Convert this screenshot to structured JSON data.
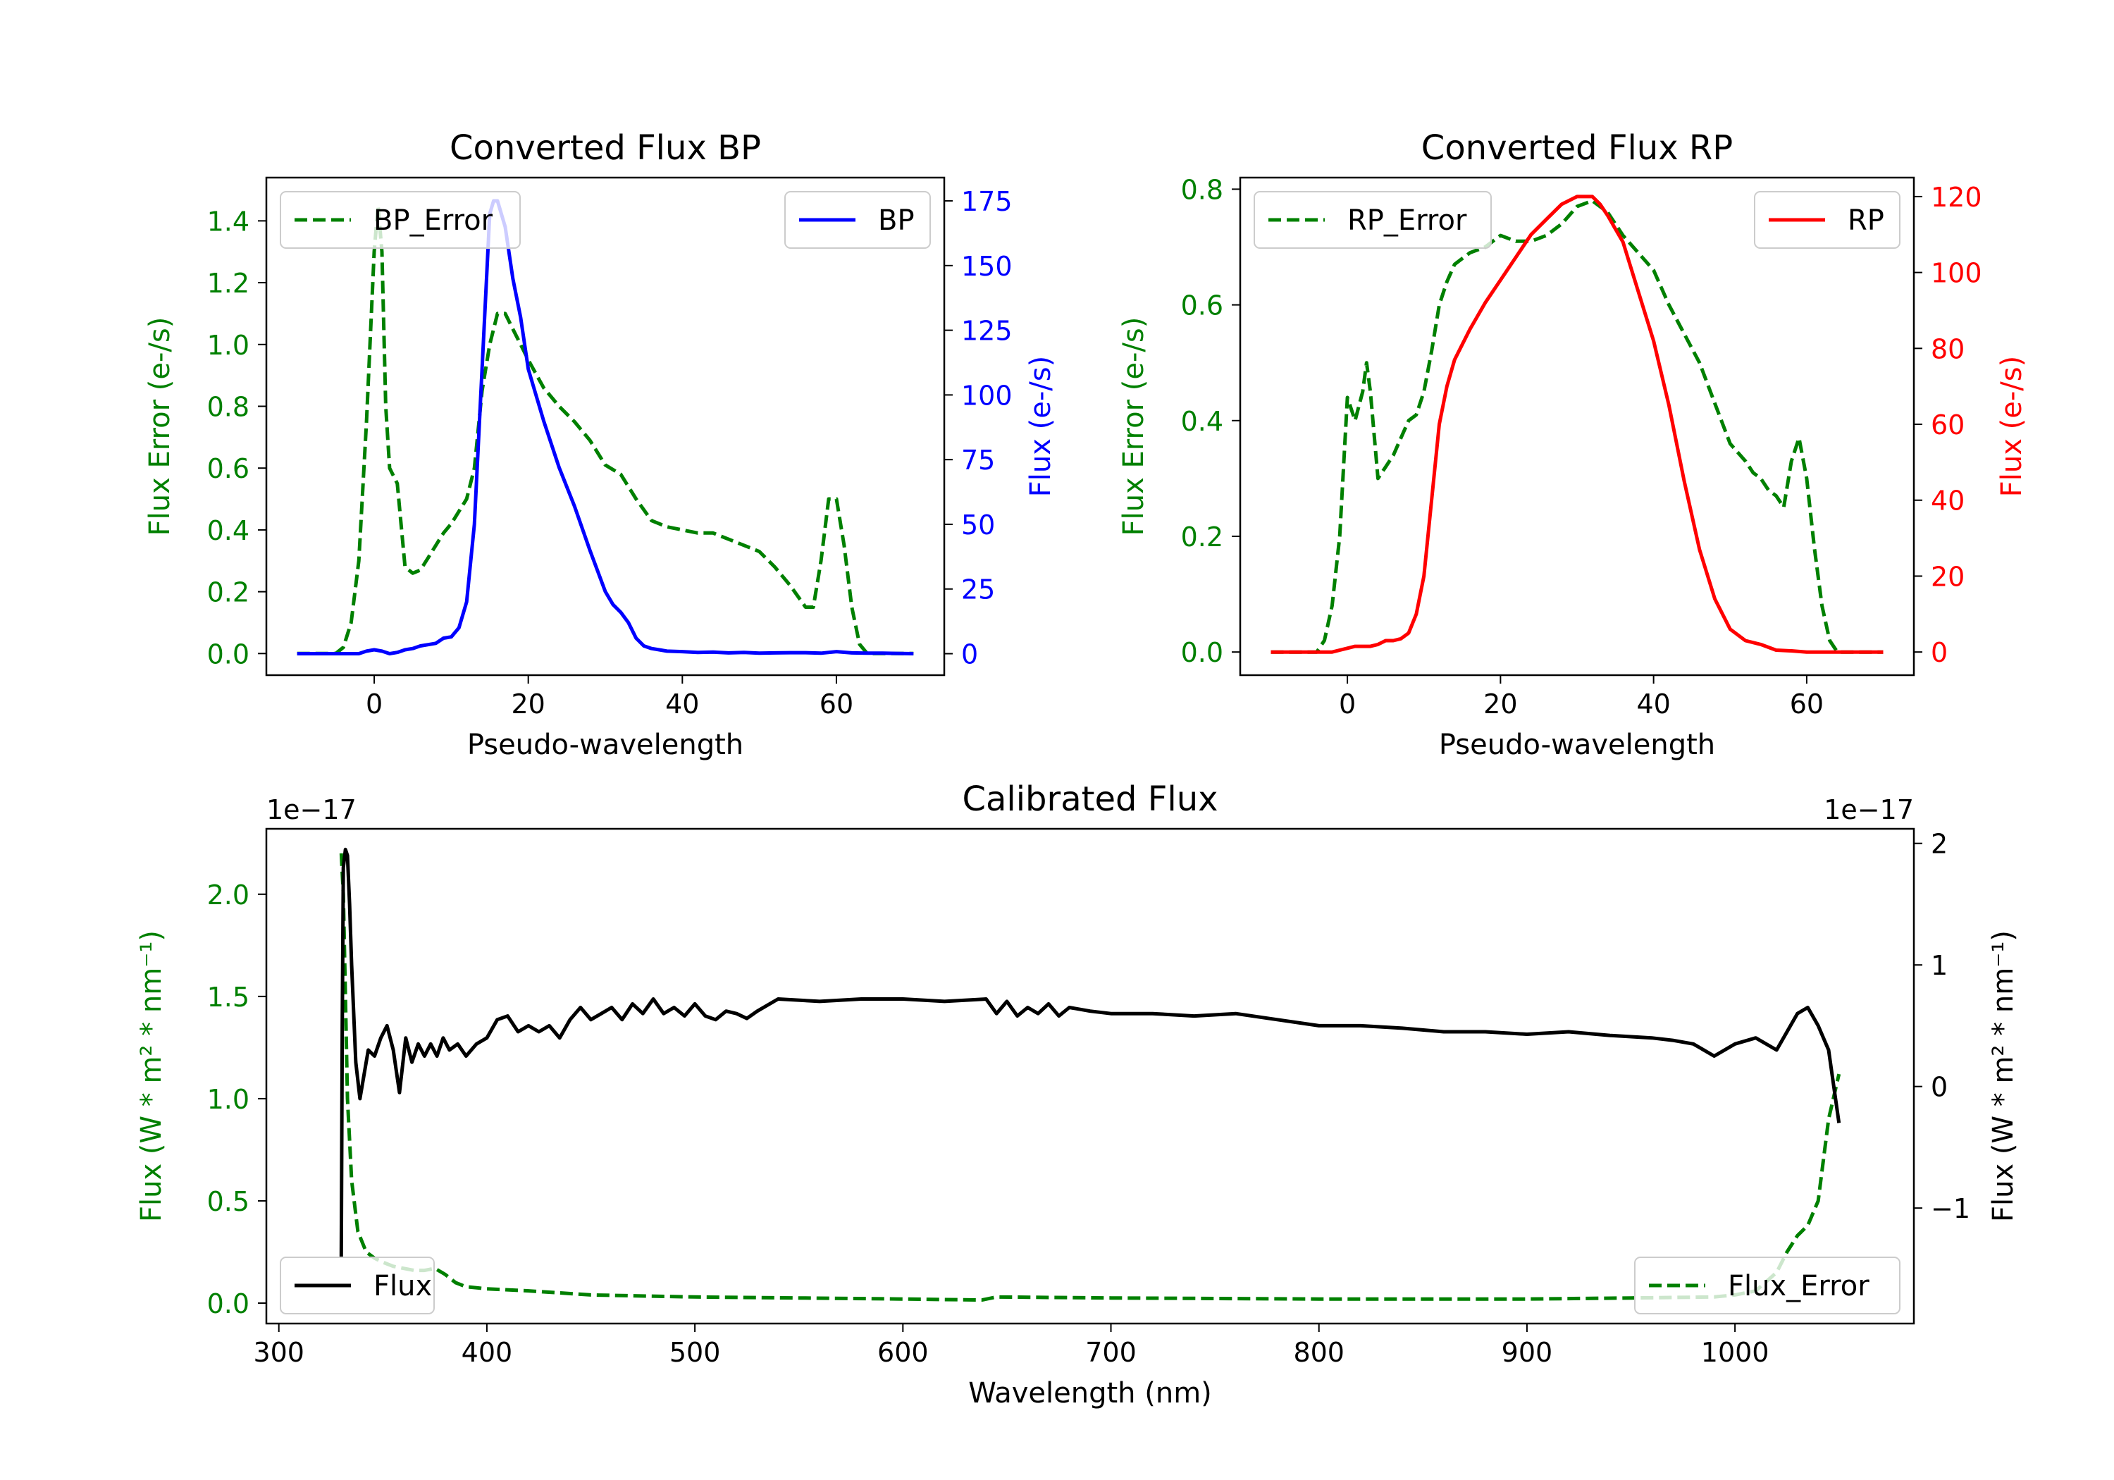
{
  "colors": {
    "error": "#008000",
    "bp": "#0000ff",
    "rp": "#ff0000",
    "flux": "#000000",
    "axis": "#000000"
  },
  "chart_data": [
    {
      "id": "bp",
      "type": "line",
      "title": "Converted Flux BP",
      "xlabel": "Pseudo-wavelength",
      "ylabel_left": "Flux Error (e-/s)",
      "ylabel_right": "Flux (e-/s)",
      "xlim": [
        -14,
        74
      ],
      "ylim_left": [
        -0.07,
        1.54
      ],
      "ylim_right": [
        -8.3,
        184
      ],
      "xticks": [
        0,
        20,
        40,
        60
      ],
      "xtick_labels": [
        "0",
        "20",
        "40",
        "60"
      ],
      "yticks_left": [
        0.0,
        0.2,
        0.4,
        0.6,
        0.8,
        1.0,
        1.2,
        1.4
      ],
      "ytick_labels_left": [
        "0.0",
        "0.2",
        "0.4",
        "0.6",
        "0.8",
        "1.0",
        "1.2",
        "1.4"
      ],
      "yticks_right": [
        0,
        25,
        50,
        75,
        100,
        125,
        150,
        175
      ],
      "ytick_labels_right": [
        "0",
        "25",
        "50",
        "75",
        "100",
        "125",
        "150",
        "175"
      ],
      "legend_left": "BP_Error",
      "legend_right": "BP",
      "series": [
        {
          "name": "BP_Error",
          "axis": "left",
          "style": "dashed",
          "color_key": "error",
          "x": [
            -10,
            -5,
            -4,
            -3,
            -2,
            -1,
            0,
            0.5,
            1,
            1.5,
            2,
            3,
            4,
            5,
            6,
            7,
            8,
            9,
            10,
            11,
            12,
            13,
            14,
            15,
            16,
            17,
            18,
            19,
            20,
            22,
            24,
            26,
            28,
            30,
            32,
            34,
            36,
            38,
            40,
            42,
            44,
            46,
            48,
            50,
            52,
            54,
            56,
            57,
            58,
            59,
            60,
            61,
            62,
            63,
            64,
            65,
            70
          ],
          "values": [
            0,
            0,
            0.02,
            0.1,
            0.3,
            0.75,
            1.3,
            1.45,
            1.3,
            0.8,
            0.6,
            0.55,
            0.28,
            0.26,
            0.27,
            0.31,
            0.35,
            0.39,
            0.42,
            0.46,
            0.5,
            0.6,
            0.85,
            1.0,
            1.1,
            1.1,
            1.05,
            1.0,
            0.95,
            0.86,
            0.8,
            0.75,
            0.69,
            0.61,
            0.58,
            0.5,
            0.43,
            0.41,
            0.4,
            0.39,
            0.39,
            0.37,
            0.35,
            0.33,
            0.28,
            0.22,
            0.15,
            0.15,
            0.3,
            0.5,
            0.5,
            0.35,
            0.15,
            0.03,
            0,
            0,
            0
          ]
        },
        {
          "name": "BP",
          "axis": "right",
          "style": "solid",
          "color_key": "bp",
          "x": [
            -10,
            -2,
            -1,
            0,
            1,
            2,
            3,
            4,
            5,
            6,
            7,
            8,
            9,
            10,
            11,
            12,
            13,
            14,
            15,
            15.5,
            16,
            17,
            18,
            19,
            20,
            22,
            24,
            26,
            28,
            30,
            31,
            32,
            33,
            34,
            35,
            36,
            37,
            38,
            40,
            42,
            44,
            46,
            48,
            50,
            52,
            54,
            56,
            58,
            60,
            62,
            64,
            66,
            70
          ],
          "values": [
            0,
            0,
            1,
            1.5,
            1,
            0,
            0.5,
            1.5,
            2,
            3,
            3.5,
            4,
            6,
            6.5,
            10,
            20,
            50,
            110,
            170,
            175,
            175,
            165,
            145,
            130,
            110,
            90,
            72,
            57,
            40,
            24,
            19,
            16,
            12,
            6,
            3,
            2,
            1.5,
            1,
            0.8,
            0.5,
            0.6,
            0.3,
            0.5,
            0.2,
            0.3,
            0.4,
            0.4,
            0.2,
            0.8,
            0.3,
            0.2,
            0.2,
            0
          ]
        }
      ]
    },
    {
      "id": "rp",
      "type": "line",
      "title": "Converted Flux RP",
      "xlabel": "Pseudo-wavelength",
      "ylabel_left": "Flux Error (e-/s)",
      "ylabel_right": "Flux (e-/s)",
      "xlim": [
        -14,
        74
      ],
      "ylim_left": [
        -0.04,
        0.82
      ],
      "ylim_right": [
        -6.1,
        125
      ],
      "xticks": [
        0,
        20,
        40,
        60
      ],
      "xtick_labels": [
        "0",
        "20",
        "40",
        "60"
      ],
      "yticks_left": [
        0.0,
        0.2,
        0.4,
        0.6,
        0.8
      ],
      "ytick_labels_left": [
        "0.0",
        "0.2",
        "0.4",
        "0.6",
        "0.8"
      ],
      "yticks_right": [
        0,
        20,
        40,
        60,
        80,
        100,
        120
      ],
      "ytick_labels_right": [
        "0",
        "20",
        "40",
        "60",
        "80",
        "100",
        "120"
      ],
      "legend_left": "RP_Error",
      "legend_right": "RP",
      "series": [
        {
          "name": "RP_Error",
          "axis": "left",
          "style": "dashed",
          "color_key": "error",
          "x": [
            -10,
            -4,
            -3,
            -2,
            -1,
            0,
            1,
            2,
            2.5,
            3,
            4,
            5,
            6,
            7,
            8,
            9,
            10,
            11,
            12,
            13,
            14,
            15,
            16,
            18,
            20,
            22,
            24,
            26,
            28,
            30,
            32,
            34,
            36,
            38,
            40,
            42,
            44,
            46,
            48,
            50,
            52,
            53,
            54,
            55,
            56,
            57,
            58,
            59,
            60,
            61,
            62,
            63,
            64,
            70
          ],
          "values": [
            0,
            0,
            0.02,
            0.08,
            0.2,
            0.44,
            0.4,
            0.45,
            0.5,
            0.45,
            0.3,
            0.32,
            0.34,
            0.37,
            0.4,
            0.41,
            0.45,
            0.52,
            0.6,
            0.64,
            0.67,
            0.68,
            0.69,
            0.7,
            0.72,
            0.71,
            0.71,
            0.72,
            0.74,
            0.77,
            0.78,
            0.76,
            0.72,
            0.69,
            0.66,
            0.6,
            0.55,
            0.5,
            0.43,
            0.36,
            0.33,
            0.31,
            0.3,
            0.28,
            0.27,
            0.25,
            0.33,
            0.37,
            0.3,
            0.18,
            0.08,
            0.02,
            0,
            0
          ]
        },
        {
          "name": "RP",
          "axis": "right",
          "style": "solid",
          "color_key": "rp",
          "x": [
            -10,
            -2,
            0,
            1,
            2,
            3,
            4,
            5,
            6,
            7,
            8,
            9,
            10,
            11,
            12,
            13,
            14,
            16,
            18,
            20,
            22,
            24,
            26,
            28,
            30,
            31,
            32,
            33,
            34,
            36,
            38,
            40,
            42,
            44,
            46,
            48,
            50,
            52,
            54,
            56,
            58,
            60,
            62,
            64,
            70
          ],
          "values": [
            0,
            0,
            1,
            1.5,
            1.5,
            1.5,
            2,
            3,
            3,
            3.5,
            5,
            10,
            20,
            40,
            60,
            70,
            77,
            85,
            92,
            98,
            104,
            110,
            114,
            118,
            120,
            120,
            120,
            118,
            115,
            108,
            95,
            82,
            65,
            45,
            27,
            14,
            6,
            3,
            2,
            0.5,
            0.3,
            0,
            0,
            0,
            0
          ]
        }
      ]
    },
    {
      "id": "cal",
      "type": "line",
      "title": "Calibrated Flux",
      "xlabel": "Wavelength (nm)",
      "ylabel_left": "Flux (W * m² * nm⁻¹)",
      "ylabel_right": "Flux (W * m² * nm⁻¹)",
      "offset_left": "1e−17",
      "offset_right": "1e−17",
      "xlim": [
        294,
        1086
      ],
      "ylim_left": [
        -0.1,
        2.32
      ],
      "ylim_right": [
        -1.95,
        2.12
      ],
      "xticks": [
        300,
        400,
        500,
        600,
        700,
        800,
        900,
        1000
      ],
      "xtick_labels": [
        "300",
        "400",
        "500",
        "600",
        "700",
        "800",
        "900",
        "1000"
      ],
      "yticks_left": [
        0.0,
        0.5,
        1.0,
        1.5,
        2.0
      ],
      "ytick_labels_left": [
        "0.0",
        "0.5",
        "1.0",
        "1.5",
        "2.0"
      ],
      "yticks_right": [
        -1,
        0,
        1,
        2
      ],
      "ytick_labels_right": [
        "−1",
        "0",
        "1",
        "2"
      ],
      "legend_left": "Flux",
      "legend_right": "Flux_Error",
      "series": [
        {
          "name": "Flux_Error",
          "axis": "left",
          "style": "dashed",
          "color_key": "error",
          "x": [
            330,
            331,
            332,
            333,
            335,
            338,
            342,
            346,
            350,
            355,
            360,
            365,
            370,
            375,
            380,
            385,
            390,
            400,
            420,
            450,
            500,
            550,
            600,
            638,
            645,
            700,
            800,
            900,
            950,
            990,
            1000,
            1010,
            1020,
            1025,
            1030,
            1035,
            1040,
            1045,
            1050
          ],
          "values": [
            2.2,
            2.0,
            1.5,
            1.0,
            0.6,
            0.35,
            0.25,
            0.22,
            0.2,
            0.18,
            0.17,
            0.16,
            0.16,
            0.17,
            0.14,
            0.1,
            0.08,
            0.07,
            0.06,
            0.04,
            0.03,
            0.025,
            0.02,
            0.015,
            0.03,
            0.025,
            0.02,
            0.02,
            0.025,
            0.03,
            0.04,
            0.06,
            0.15,
            0.25,
            0.33,
            0.38,
            0.5,
            0.9,
            1.12
          ]
        },
        {
          "name": "Flux",
          "axis": "right",
          "style": "solid",
          "color_key": "flux",
          "x": [
            330,
            330.5,
            331,
            332,
            333,
            334,
            335,
            337,
            339,
            341,
            343,
            346,
            349,
            352,
            355,
            358,
            361,
            364,
            367,
            370,
            373,
            376,
            379,
            382,
            386,
            390,
            395,
            400,
            405,
            410,
            415,
            420,
            425,
            430,
            435,
            440,
            445,
            450,
            455,
            460,
            465,
            470,
            475,
            480,
            485,
            490,
            495,
            500,
            505,
            510,
            515,
            520,
            525,
            530,
            540,
            560,
            580,
            600,
            620,
            640,
            645,
            650,
            655,
            660,
            665,
            670,
            675,
            680,
            690,
            700,
            720,
            740,
            760,
            780,
            800,
            820,
            840,
            860,
            880,
            900,
            920,
            940,
            960,
            970,
            980,
            990,
            1000,
            1010,
            1020,
            1030,
            1035,
            1040,
            1045,
            1050
          ],
          "values": [
            -1.4,
            0.5,
            1.8,
            1.95,
            1.9,
            1.5,
            1.0,
            0.2,
            -0.1,
            0.1,
            0.3,
            0.25,
            0.4,
            0.5,
            0.3,
            -0.05,
            0.4,
            0.2,
            0.35,
            0.25,
            0.35,
            0.25,
            0.4,
            0.3,
            0.35,
            0.25,
            0.35,
            0.4,
            0.55,
            0.58,
            0.45,
            0.5,
            0.45,
            0.5,
            0.4,
            0.55,
            0.65,
            0.55,
            0.6,
            0.65,
            0.55,
            0.68,
            0.6,
            0.72,
            0.6,
            0.65,
            0.58,
            0.68,
            0.58,
            0.55,
            0.62,
            0.6,
            0.56,
            0.62,
            0.72,
            0.7,
            0.72,
            0.72,
            0.7,
            0.72,
            0.6,
            0.7,
            0.58,
            0.65,
            0.6,
            0.68,
            0.58,
            0.65,
            0.62,
            0.6,
            0.6,
            0.58,
            0.6,
            0.55,
            0.5,
            0.5,
            0.48,
            0.45,
            0.45,
            0.43,
            0.45,
            0.42,
            0.4,
            0.38,
            0.35,
            0.25,
            0.35,
            0.4,
            0.3,
            0.6,
            0.65,
            0.5,
            0.3,
            -0.3
          ]
        }
      ]
    }
  ]
}
